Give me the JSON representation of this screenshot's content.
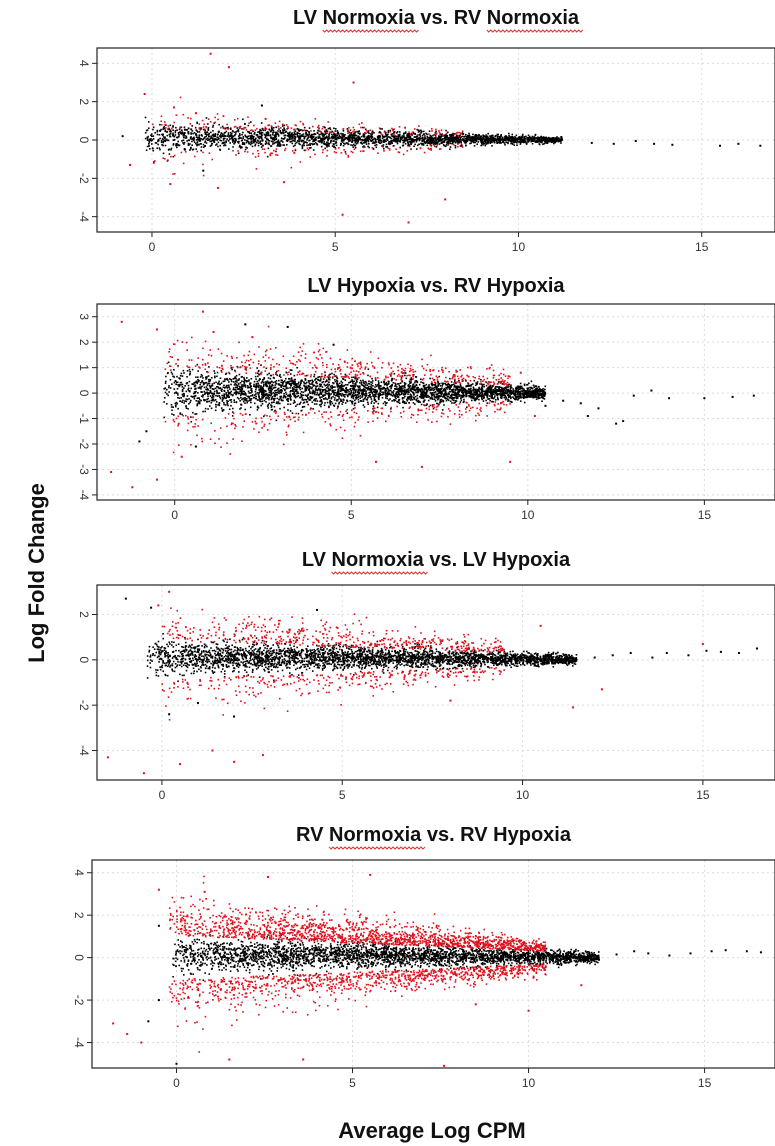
{
  "figure": {
    "ylabel": "Log Fold Change",
    "xlabel": "Average Log CPM"
  },
  "chart_data": [
    {
      "type": "scatter",
      "title": "LV Normoxia vs. RV Normoxia",
      "title_parts": [
        "LV ",
        "Normoxia",
        " vs. RV ",
        "Normoxia"
      ],
      "spellcheck_underlined": [
        1,
        3
      ],
      "xlim": [
        -1.5,
        17
      ],
      "ylim": [
        -4.8,
        4.8
      ],
      "x_ticks": [
        0,
        5,
        10,
        15
      ],
      "y_ticks": [
        4,
        2,
        0,
        -2,
        -4
      ],
      "grid": true,
      "series": [
        {
          "color": "#000000",
          "role": "not significant",
          "points": [
            [
              -0.8,
              0.2
            ],
            [
              0.9,
              -0.5
            ],
            [
              2,
              0.6
            ],
            [
              3.5,
              -0.3
            ],
            [
              5,
              0.2
            ],
            [
              6.5,
              -0.2
            ],
            [
              8,
              0.1
            ],
            [
              9.5,
              -0.1
            ],
            [
              11,
              0
            ],
            [
              12,
              -0.15
            ],
            [
              12.6,
              -0.2
            ],
            [
              13.2,
              -0.05
            ],
            [
              13.7,
              -0.2
            ],
            [
              14.2,
              -0.25
            ],
            [
              15.5,
              -0.3
            ],
            [
              16,
              -0.2
            ],
            [
              16.6,
              -0.3
            ],
            [
              1.4,
              -1.6
            ],
            [
              3,
              1.8
            ]
          ],
          "cloud": {
            "x_start": -0.2,
            "x_end": 11.2,
            "spread_start": 0.9,
            "spread_end": 0.18,
            "count": 2600
          }
        },
        {
          "color": "#e0101c",
          "role": "significant (DE)",
          "points": [
            [
              1.6,
              4.5
            ],
            [
              2.1,
              3.8
            ],
            [
              5.5,
              3.0
            ],
            [
              -0.2,
              2.4
            ],
            [
              0.6,
              1.7
            ],
            [
              1.2,
              1.4
            ],
            [
              3.1,
              1.1
            ],
            [
              7,
              -4.3
            ],
            [
              8,
              -3.1
            ],
            [
              5.2,
              -3.9
            ],
            [
              0.5,
              -2.3
            ],
            [
              1.8,
              -2.5
            ],
            [
              3.6,
              -2.2
            ],
            [
              -0.6,
              -1.3
            ]
          ],
          "cloud": {
            "x_start": 0,
            "x_end": 8.5,
            "spread_start": 1.1,
            "spread_end": 0.35,
            "count": 260
          }
        }
      ]
    },
    {
      "type": "scatter",
      "title": "LV Hypoxia vs. RV Hypoxia",
      "title_parts": [
        "LV Hypoxia vs. RV Hypoxia"
      ],
      "spellcheck_underlined": [],
      "xlim": [
        -2.2,
        17
      ],
      "ylim": [
        -4.2,
        3.5
      ],
      "x_ticks": [
        0,
        5,
        10,
        15
      ],
      "y_ticks": [
        3,
        2,
        1,
        0,
        -1,
        -2,
        -3,
        -4
      ],
      "grid": true,
      "series": [
        {
          "color": "#000000",
          "role": "not significant",
          "points": [
            [
              -0.8,
              -1.5
            ],
            [
              -1,
              -1.9
            ],
            [
              0.6,
              -2.1
            ],
            [
              2,
              2.7
            ],
            [
              3.2,
              2.6
            ],
            [
              4.5,
              1.9
            ],
            [
              10.5,
              -0.5
            ],
            [
              11,
              -0.3
            ],
            [
              11.5,
              -0.4
            ],
            [
              12,
              -0.6
            ],
            [
              12.5,
              -1.2
            ],
            [
              13,
              -0.1
            ],
            [
              13.5,
              0.1
            ],
            [
              14,
              -0.2
            ],
            [
              15,
              -0.2
            ],
            [
              15.8,
              -0.15
            ],
            [
              16.4,
              -0.1
            ],
            [
              12.7,
              -1.1
            ],
            [
              11.7,
              -0.9
            ]
          ],
          "cloud": {
            "x_start": -0.3,
            "x_end": 10.5,
            "spread_start": 1.05,
            "spread_end": 0.3,
            "count": 3200
          }
        },
        {
          "color": "#e0101c",
          "role": "significant (DE)",
          "points": [
            [
              -1.5,
              2.8
            ],
            [
              -0.5,
              2.5
            ],
            [
              0.8,
              3.2
            ],
            [
              1.1,
              2.4
            ],
            [
              2.2,
              2.2
            ],
            [
              -1.8,
              -3.1
            ],
            [
              -1.2,
              -3.7
            ],
            [
              -0.5,
              -3.4
            ],
            [
              0.2,
              -2.5
            ],
            [
              5.7,
              -2.7
            ],
            [
              9.5,
              -2.7
            ],
            [
              7,
              -2.9
            ],
            [
              10.2,
              -0.9
            ],
            [
              9.8,
              0.8
            ]
          ],
          "cloud": {
            "x_start": -0.3,
            "x_end": 9.5,
            "spread_start": 1.6,
            "spread_end": 0.55,
            "count": 650
          }
        }
      ]
    },
    {
      "type": "scatter",
      "title": "LV Normoxia vs. LV Hypoxia",
      "title_parts": [
        "LV ",
        "Normoxia",
        " vs. LV Hypoxia"
      ],
      "spellcheck_underlined": [
        1
      ],
      "xlim": [
        -1.8,
        17
      ],
      "ylim": [
        -5.3,
        3.3
      ],
      "x_ticks": [
        0,
        5,
        10,
        15
      ],
      "y_ticks": [
        2,
        0,
        -2,
        -4
      ],
      "grid": true,
      "series": [
        {
          "color": "#000000",
          "role": "not significant",
          "points": [
            [
              -1,
              2.7
            ],
            [
              -0.3,
              2.3
            ],
            [
              4.3,
              2.2
            ],
            [
              12,
              0.1
            ],
            [
              12.5,
              0.2
            ],
            [
              13,
              0.3
            ],
            [
              13.6,
              0.1
            ],
            [
              14,
              0.3
            ],
            [
              14.6,
              0.2
            ],
            [
              15.1,
              0.4
            ],
            [
              15.5,
              0.35
            ],
            [
              16,
              0.3
            ],
            [
              16.5,
              0.5
            ],
            [
              0.2,
              -2.4
            ],
            [
              1,
              -1.9
            ],
            [
              2,
              -2.5
            ]
          ],
          "cloud": {
            "x_start": -0.4,
            "x_end": 11.5,
            "spread_start": 0.9,
            "spread_end": 0.25,
            "count": 3200
          }
        },
        {
          "color": "#e0101c",
          "role": "significant (DE)",
          "points": [
            [
              -1.5,
              -4.3
            ],
            [
              -0.5,
              -5
            ],
            [
              0.5,
              -4.6
            ],
            [
              1.4,
              -4
            ],
            [
              2,
              -4.5
            ],
            [
              2.8,
              -4.2
            ],
            [
              0.2,
              3
            ],
            [
              -0.1,
              2.4
            ],
            [
              11.4,
              -2.1
            ],
            [
              12.2,
              -1.3
            ],
            [
              15,
              0.7
            ],
            [
              10.5,
              1.5
            ],
            [
              8,
              -1.8
            ]
          ],
          "cloud": {
            "x_start": 0,
            "x_end": 9.5,
            "spread_start": 1.55,
            "spread_end": 0.55,
            "count": 800
          }
        }
      ]
    },
    {
      "type": "scatter",
      "title": "RV Normoxia vs. RV Hypoxia",
      "title_parts": [
        "RV ",
        "Normoxia",
        " vs. RV Hypoxia"
      ],
      "spellcheck_underlined": [
        1
      ],
      "xlim": [
        -2.4,
        17
      ],
      "ylim": [
        -5.2,
        4.6
      ],
      "x_ticks": [
        0,
        5,
        10,
        15
      ],
      "y_ticks": [
        4,
        2,
        0,
        -2,
        -4
      ],
      "grid": true,
      "series": [
        {
          "color": "#000000",
          "role": "not significant",
          "points": [
            [
              -0.5,
              -2
            ],
            [
              -0.8,
              -3
            ],
            [
              11.5,
              0.1
            ],
            [
              12,
              -0.1
            ],
            [
              12.5,
              0.15
            ],
            [
              13,
              0.3
            ],
            [
              13.4,
              0.2
            ],
            [
              14,
              0.1
            ],
            [
              14.6,
              0.2
            ],
            [
              15.2,
              0.3
            ],
            [
              15.6,
              0.35
            ],
            [
              16.2,
              0.3
            ],
            [
              16.6,
              0.25
            ],
            [
              -0.5,
              1.5
            ],
            [
              0,
              -5
            ]
          ],
          "cloud": {
            "x_start": -0.1,
            "x_end": 12,
            "spread_start": 1.0,
            "spread_end": 0.3,
            "count": 3000
          }
        },
        {
          "color": "#e0101c",
          "role": "significant (DE)",
          "points": [
            [
              -1.8,
              -3.1
            ],
            [
              -1.4,
              -3.6
            ],
            [
              -1,
              -4
            ],
            [
              -0.5,
              3.2
            ],
            [
              0.8,
              3.1
            ],
            [
              2.6,
              3.8
            ],
            [
              1.5,
              -4.8
            ],
            [
              3.6,
              -4.8
            ],
            [
              7.6,
              -5.1
            ],
            [
              5.5,
              3.9
            ],
            [
              8.5,
              -2.2
            ],
            [
              10,
              -2.5
            ],
            [
              11.5,
              -1.3
            ]
          ],
          "cloud": {
            "x_start": -0.2,
            "x_end": 10.5,
            "spread_start": 1.9,
            "spread_end": 0.55,
            "count": 2600
          }
        }
      ]
    }
  ]
}
